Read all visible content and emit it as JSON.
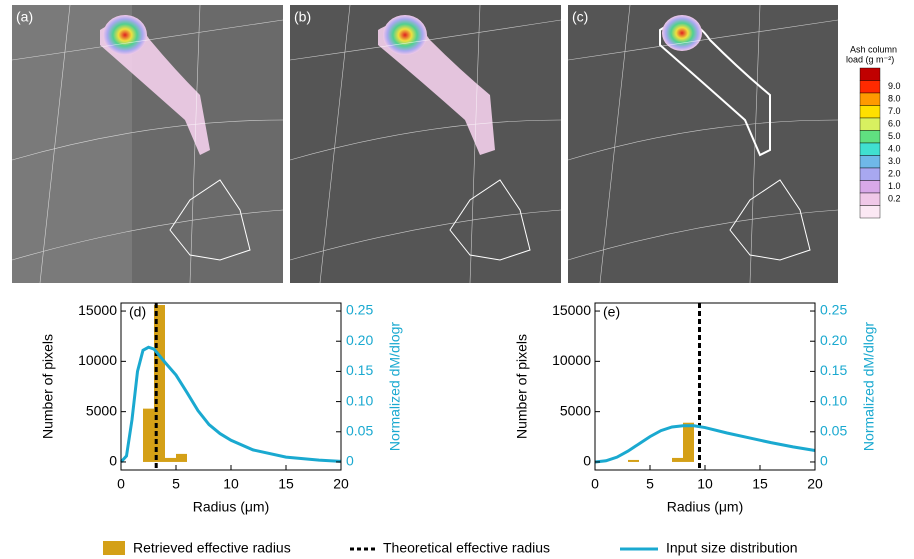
{
  "maps": {
    "panels": [
      "(a)",
      "(b)",
      "(c)"
    ],
    "colorbar": {
      "title_lines": [
        "Ash column",
        "load (g m⁻²)"
      ],
      "labels": [
        "9.0",
        "8.0",
        "7.0",
        "6.0",
        "5.0",
        "4.0",
        "3.0",
        "2.0",
        "1.0",
        "0.2"
      ],
      "colors": [
        "#c00000",
        "#ff2a00",
        "#ff9a00",
        "#ffe000",
        "#d8f060",
        "#60e080",
        "#40e0d0",
        "#6fb8e8",
        "#a8a8f0",
        "#d8a8e8",
        "#f0c8e8",
        "#fbe8f4"
      ]
    }
  },
  "legend": {
    "items": [
      {
        "label": "Retrieved effective radius",
        "color": "#d4a017"
      },
      {
        "label": "Theoretical effective radius",
        "color": "#000000"
      },
      {
        "label": "Input size distribution",
        "color": "#1aa9d0"
      }
    ]
  },
  "chart_data": [
    {
      "type": "histogram",
      "panel_label": "(d)",
      "xlabel": "Radius (μm)",
      "ylabel": "Number of pixels",
      "y2label": "Normalized dM/dlogr",
      "bins": [
        2,
        3,
        4,
        5,
        6
      ],
      "counts": [
        5300,
        15600,
        400,
        800
      ],
      "effective_radius": 3.2,
      "curve": {
        "axis": "y2",
        "x": [
          0,
          0.5,
          1,
          1.5,
          2,
          2.5,
          3,
          4,
          5,
          6,
          7,
          8,
          9,
          10,
          12,
          15,
          18,
          20
        ],
        "values": [
          0,
          0.01,
          0.07,
          0.15,
          0.185,
          0.19,
          0.187,
          0.165,
          0.144,
          0.115,
          0.085,
          0.062,
          0.047,
          0.036,
          0.02,
          0.008,
          0.003,
          0.001
        ]
      },
      "xlim": [
        0,
        20
      ],
      "xticks": [
        0,
        5,
        10,
        15,
        20
      ],
      "ylim": [
        -800,
        15800
      ],
      "yticks": [
        0,
        5000,
        10000,
        15000
      ],
      "y2lim": [
        -0.0133,
        0.2633
      ],
      "y2ticks": [
        0,
        0.05,
        {
          "value": 0.1,
          "label": "0.10"
        },
        0.15,
        {
          "value": 0.2,
          "label": "0.20"
        },
        0.25
      ]
    },
    {
      "type": "histogram",
      "panel_label": "(e)",
      "xlabel": "Radius (μm)",
      "ylabel": "Number of pixels",
      "y2label": "Normalized dM/dlogr",
      "bins": [
        3,
        4,
        5,
        6,
        7,
        8,
        9
      ],
      "counts": [
        200,
        0,
        0,
        0,
        400,
        3900
      ],
      "effective_radius": 9.5,
      "curve": {
        "axis": "y2",
        "x": [
          0,
          1,
          2,
          3,
          4,
          5,
          6,
          7,
          8,
          9,
          10,
          12,
          14,
          16,
          18,
          20
        ],
        "values": [
          0,
          0.002,
          0.008,
          0.018,
          0.03,
          0.042,
          0.052,
          0.058,
          0.06,
          0.06,
          0.057,
          0.048,
          0.04,
          0.032,
          0.025,
          0.019
        ]
      },
      "xlim": [
        0,
        20
      ],
      "xticks": [
        0,
        5,
        10,
        15,
        20
      ],
      "ylim": [
        -800,
        15800
      ],
      "yticks": [
        0,
        5000,
        10000,
        15000
      ],
      "y2lim": [
        -0.0133,
        0.2633
      ],
      "y2ticks": [
        0,
        0.05,
        {
          "value": 0.1,
          "label": "0.10"
        },
        0.15,
        {
          "value": 0.2,
          "label": "0.20"
        },
        0.25
      ]
    }
  ]
}
